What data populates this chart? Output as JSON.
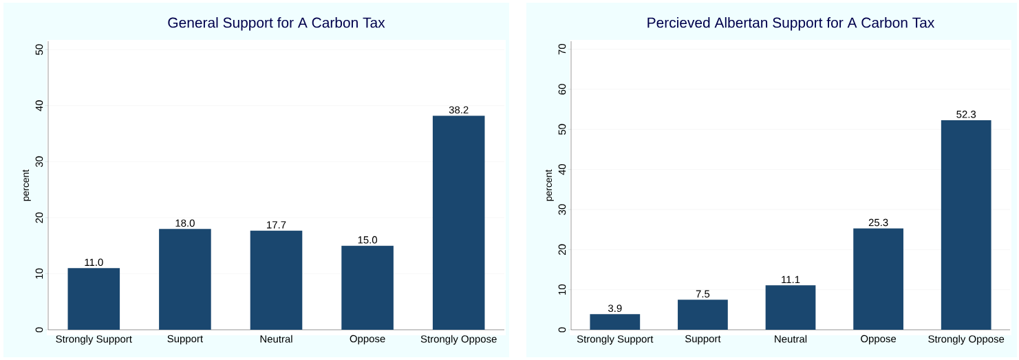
{
  "chart_data": [
    {
      "type": "bar",
      "title": "General Support for A Carbon Tax",
      "ylabel": "percent",
      "categories": [
        "Strongly Support",
        "Support",
        "Neutral",
        "Oppose",
        "Strongly Oppose"
      ],
      "values": [
        11.0,
        18.0,
        17.7,
        15.0,
        38.2
      ],
      "value_labels": [
        "11.0",
        "18.0",
        "17.7",
        "15.0",
        "38.2"
      ],
      "color": "#1a476f",
      "ylim": [
        0,
        51.5
      ],
      "yticks": [
        0,
        10,
        20,
        30,
        40,
        50
      ],
      "grid": "y"
    },
    {
      "type": "bar",
      "title": "Percieved Albertan Support for A Carbon Tax",
      "ylabel": "percent",
      "categories": [
        "Strongly Support",
        "Support",
        "Neutral",
        "Oppose",
        "Strongly Oppose"
      ],
      "values": [
        3.9,
        7.5,
        11.1,
        25.3,
        52.3
      ],
      "value_labels": [
        "3.9",
        "7.5",
        "11.1",
        "25.3",
        "52.3"
      ],
      "color": "#1a476f",
      "ylim": [
        0,
        72
      ],
      "yticks": [
        0,
        10,
        20,
        30,
        40,
        50,
        60,
        70
      ],
      "grid": "y"
    }
  ]
}
